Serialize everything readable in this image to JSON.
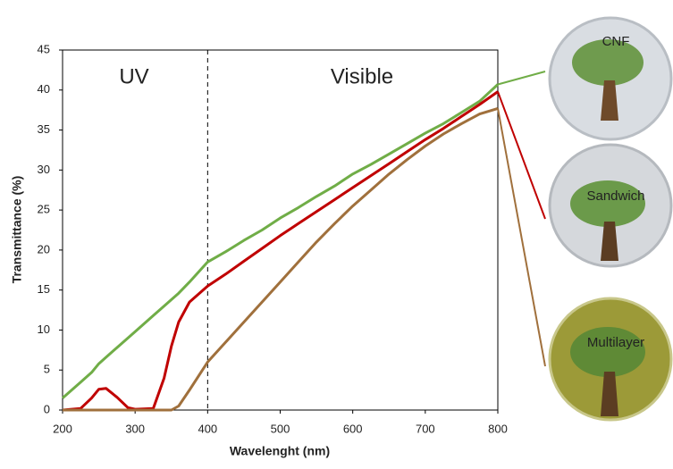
{
  "chart_data": {
    "type": "line",
    "x": [
      200,
      225,
      240,
      250,
      260,
      275,
      290,
      300,
      325,
      340,
      350,
      360,
      375,
      400,
      425,
      450,
      475,
      500,
      525,
      550,
      575,
      600,
      625,
      650,
      675,
      700,
      725,
      750,
      775,
      800
    ],
    "series": [
      {
        "name": "CNF",
        "color": "#70ad47",
        "values": [
          1.5,
          3.5,
          4.7,
          5.8,
          6.6,
          7.8,
          9,
          9.8,
          11.8,
          13,
          13.8,
          14.6,
          16,
          18.5,
          19.8,
          21.2,
          22.5,
          24,
          25.3,
          26.7,
          28,
          29.5,
          30.7,
          32,
          33.3,
          34.6,
          35.8,
          37.2,
          38.6,
          40.7
        ]
      },
      {
        "name": "Sandwich",
        "color": "#c00000",
        "values": [
          0,
          0.2,
          1.5,
          2.6,
          2.7,
          1.6,
          0.3,
          0.1,
          0.2,
          4,
          8,
          11,
          13.5,
          15.5,
          17,
          18.6,
          20.2,
          21.8,
          23.3,
          24.8,
          26.3,
          27.8,
          29.3,
          30.8,
          32.3,
          33.8,
          35.2,
          36.7,
          38.2,
          39.8
        ]
      },
      {
        "name": "Multilayer",
        "color": "#a0703c",
        "values": [
          0,
          0,
          0,
          0,
          0,
          0,
          0,
          0,
          0,
          0,
          0,
          0.5,
          2.5,
          6,
          8.5,
          11,
          13.5,
          16,
          18.5,
          21,
          23.3,
          25.5,
          27.5,
          29.5,
          31.3,
          33,
          34.5,
          35.8,
          37,
          37.7
        ]
      }
    ],
    "xlabel": "Wavelenght (nm)",
    "ylabel": "Transmittance (%)",
    "xlim": [
      200,
      800
    ],
    "xticks": [
      200,
      300,
      400,
      500,
      600,
      700,
      800
    ],
    "ylim": [
      0,
      45
    ],
    "yticks": [
      0,
      5,
      10,
      15,
      20,
      25,
      30,
      35,
      40,
      45
    ],
    "divider_x": 400,
    "region_labels": [
      "UV",
      "Visible"
    ]
  }
}
